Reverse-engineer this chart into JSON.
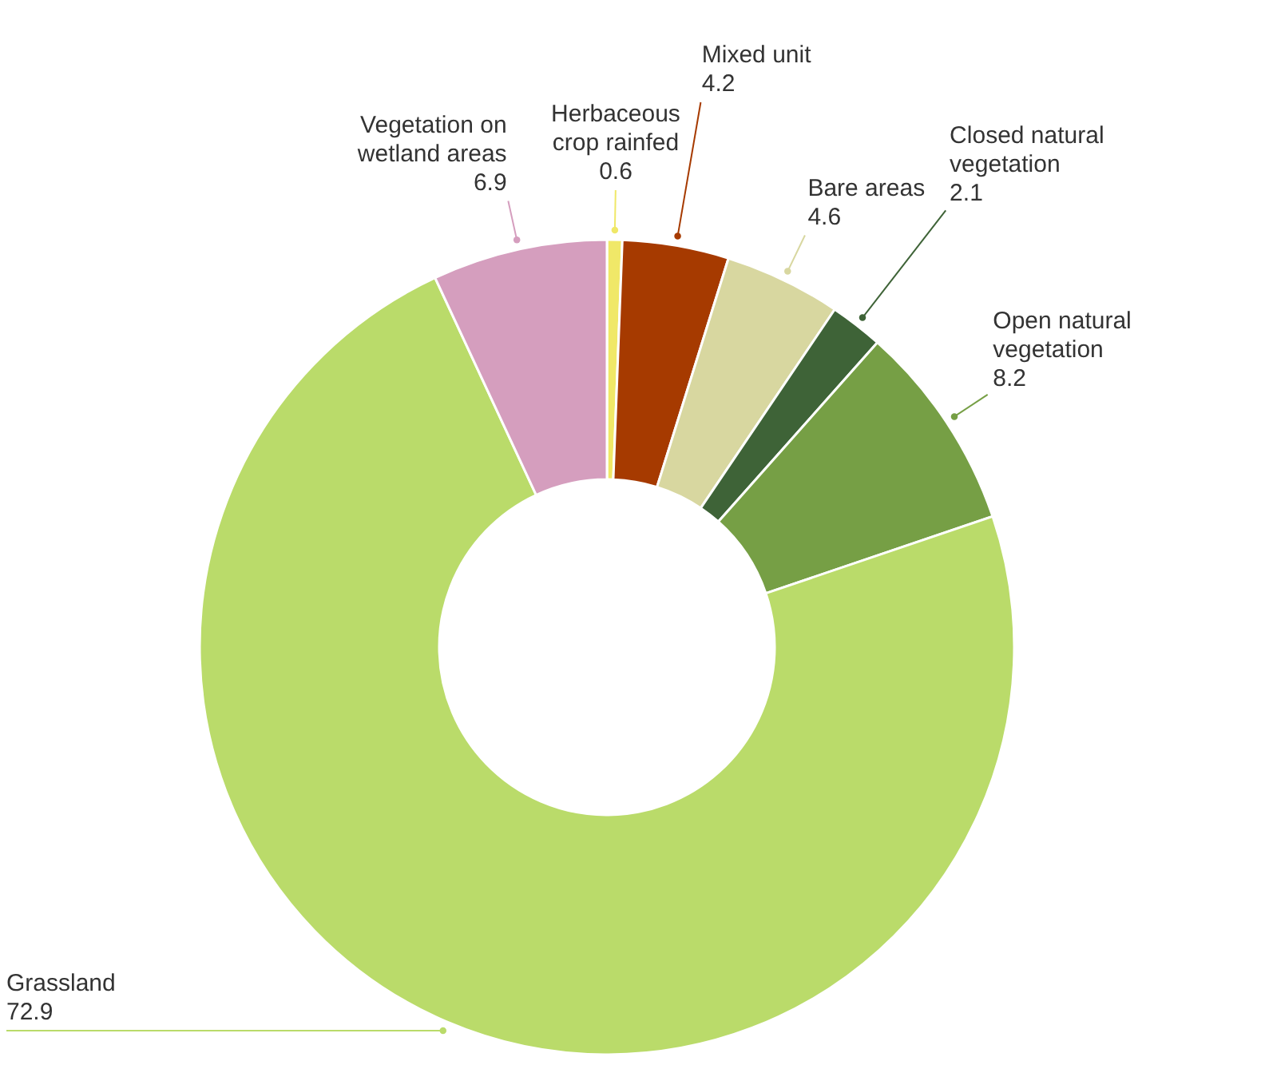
{
  "chart_data": {
    "type": "donut",
    "categories": [
      "Herbaceous crop rainfed",
      "Mixed unit",
      "Bare areas",
      "Closed natural vegetation",
      "Open natural vegetation",
      "Grassland",
      "Vegetation on wetland areas"
    ],
    "values": [
      0.6,
      4.2,
      4.6,
      2.1,
      8.2,
      72.9,
      6.9
    ],
    "colors": [
      "#f0e868",
      "#a63a00",
      "#d8d7a0",
      "#3e6337",
      "#769f45",
      "#badb6a",
      "#d59ebe"
    ],
    "data_labels": true
  }
}
